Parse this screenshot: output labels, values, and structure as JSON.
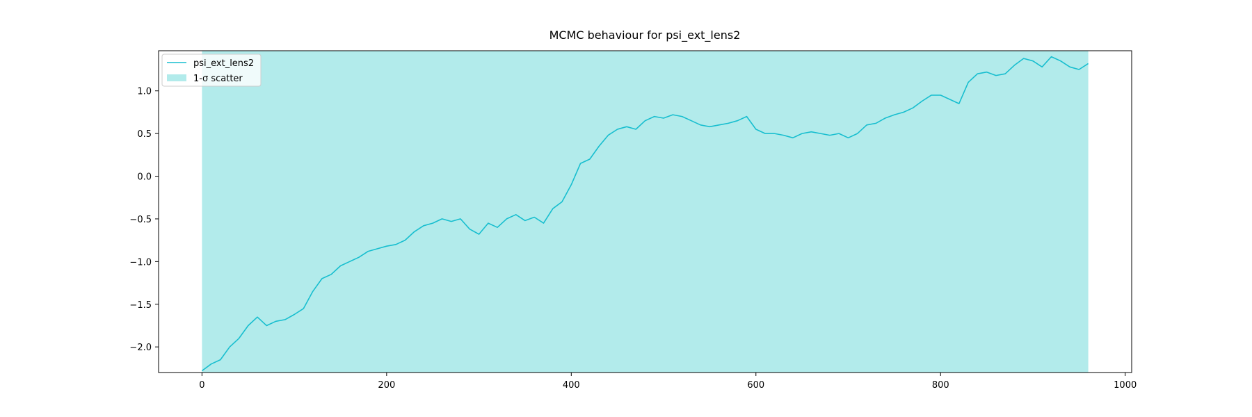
{
  "chart_data": {
    "type": "line",
    "title": "MCMC behaviour for psi_ext_lens2",
    "xlabel": "",
    "ylabel": "",
    "xlim": [
      -47,
      1007
    ],
    "ylim": [
      -2.3,
      1.47
    ],
    "xticks": [
      0,
      200,
      400,
      600,
      800,
      1000
    ],
    "xtick_labels": [
      "0",
      "200",
      "400",
      "600",
      "800",
      "1000"
    ],
    "yticks": [
      -2.0,
      -1.5,
      -1.0,
      -0.5,
      0.0,
      0.5,
      1.0
    ],
    "ytick_labels": [
      "−2.0",
      "−1.5",
      "−1.0",
      "−0.5",
      "0.0",
      "0.5",
      "1.0"
    ],
    "grid": false,
    "legend": {
      "placement": "top-left",
      "entries": [
        {
          "label": "psi_ext_lens2",
          "kind": "line"
        },
        {
          "label": "1-σ scatter",
          "kind": "patch"
        }
      ]
    },
    "colors": {
      "line": "#17becf",
      "band": "#b2ebeb"
    },
    "band": {
      "name": "1-σ scatter",
      "x_range": [
        0,
        960
      ],
      "y_range": [
        -2.3,
        1.47
      ]
    },
    "series": [
      {
        "name": "psi_ext_lens2",
        "x": [
          0,
          10,
          20,
          30,
          40,
          50,
          60,
          70,
          80,
          90,
          100,
          110,
          120,
          130,
          140,
          150,
          160,
          170,
          180,
          190,
          200,
          210,
          220,
          230,
          240,
          250,
          260,
          270,
          280,
          290,
          300,
          310,
          320,
          330,
          340,
          350,
          360,
          370,
          380,
          390,
          400,
          410,
          420,
          430,
          440,
          450,
          460,
          470,
          480,
          490,
          500,
          510,
          520,
          530,
          540,
          550,
          560,
          570,
          580,
          590,
          600,
          610,
          620,
          630,
          640,
          650,
          660,
          670,
          680,
          690,
          700,
          710,
          720,
          730,
          740,
          750,
          760,
          770,
          780,
          790,
          800,
          810,
          820,
          830,
          840,
          850,
          860,
          870,
          880,
          890,
          900,
          910,
          920,
          930,
          940,
          950,
          960
        ],
        "y": [
          -2.28,
          -2.2,
          -2.15,
          -2.0,
          -1.9,
          -1.75,
          -1.65,
          -1.75,
          -1.7,
          -1.68,
          -1.62,
          -1.55,
          -1.35,
          -1.2,
          -1.15,
          -1.05,
          -1.0,
          -0.95,
          -0.88,
          -0.85,
          -0.82,
          -0.8,
          -0.75,
          -0.65,
          -0.58,
          -0.55,
          -0.5,
          -0.53,
          -0.5,
          -0.62,
          -0.68,
          -0.55,
          -0.6,
          -0.5,
          -0.45,
          -0.52,
          -0.48,
          -0.55,
          -0.38,
          -0.3,
          -0.1,
          0.15,
          0.2,
          0.35,
          0.48,
          0.55,
          0.58,
          0.55,
          0.65,
          0.7,
          0.68,
          0.72,
          0.7,
          0.65,
          0.6,
          0.58,
          0.6,
          0.62,
          0.65,
          0.7,
          0.55,
          0.5,
          0.5,
          0.48,
          0.45,
          0.5,
          0.52,
          0.5,
          0.48,
          0.5,
          0.45,
          0.5,
          0.6,
          0.62,
          0.68,
          0.72,
          0.75,
          0.8,
          0.88,
          0.95,
          0.95,
          0.9,
          0.85,
          1.1,
          1.2,
          1.22,
          1.18,
          1.2,
          1.3,
          1.38,
          1.35,
          1.28,
          1.4,
          1.35,
          1.28,
          1.25,
          1.32
        ]
      }
    ]
  }
}
